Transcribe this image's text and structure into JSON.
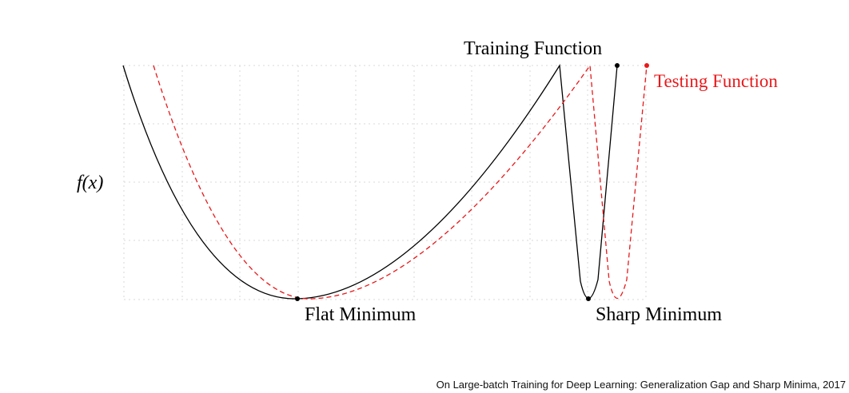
{
  "figure": {
    "ylabel": "f(x)",
    "training_label": "Training Function",
    "testing_label": "Testing Function",
    "flat_label": "Flat Minimum",
    "sharp_label": "Sharp Minimum",
    "caption": "On Large-batch Training for Deep Learning: Generalization Gap and Sharp Minima, 2017"
  },
  "colors": {
    "training": "#000000",
    "testing": "#e8191b",
    "grid": "#d9d9d9"
  }
}
